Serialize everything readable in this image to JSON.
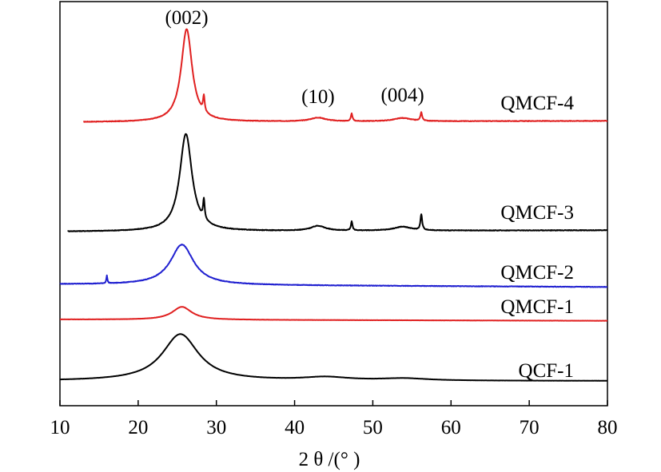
{
  "chart_data": {
    "type": "line",
    "xlabel": "2 θ /(°  )",
    "xlim": [
      10,
      80
    ],
    "xticks": [
      10,
      20,
      30,
      40,
      50,
      60,
      70,
      80
    ],
    "grid": false,
    "legend": "none (series labelled inline on the right)",
    "annotations": [
      {
        "text": "(002)",
        "x": 26.2
      },
      {
        "text": "(10)",
        "x": 43.0
      },
      {
        "text": "(004)",
        "x": 53.8
      }
    ],
    "series": [
      {
        "name": "QMCF-4",
        "color": "#e02020",
        "x_range": [
          13,
          80
        ],
        "baseline": 0.05,
        "slope": 0.0002,
        "noise": 0.006,
        "peaks": [
          {
            "center": 26.2,
            "height": 1.0,
            "width": 0.85
          },
          {
            "center": 28.4,
            "height": 0.17,
            "width": 0.12
          },
          {
            "center": 43.0,
            "height": 0.04,
            "width": 1.2
          },
          {
            "center": 47.3,
            "height": 0.08,
            "width": 0.12
          },
          {
            "center": 53.8,
            "height": 0.035,
            "width": 1.3
          },
          {
            "center": 56.2,
            "height": 0.09,
            "width": 0.13
          }
        ]
      },
      {
        "name": "QMCF-3",
        "color": "#000000",
        "x_range": [
          11,
          80
        ],
        "baseline": 0.04,
        "slope": 0.0002,
        "noise": 0.006,
        "peaks": [
          {
            "center": 26.1,
            "height": 1.0,
            "width": 0.95
          },
          {
            "center": 28.4,
            "height": 0.2,
            "width": 0.12
          },
          {
            "center": 43.0,
            "height": 0.05,
            "width": 1.1
          },
          {
            "center": 47.3,
            "height": 0.09,
            "width": 0.12
          },
          {
            "center": 53.8,
            "height": 0.04,
            "width": 1.3
          },
          {
            "center": 56.2,
            "height": 0.16,
            "width": 0.13
          }
        ]
      },
      {
        "name": "QMCF-2",
        "color": "#2020d0",
        "x_range": [
          10,
          80
        ],
        "baseline": 0.05,
        "slope": -0.0006,
        "noise": 0.008,
        "peaks": [
          {
            "center": 25.6,
            "height": 0.63,
            "width": 1.8
          },
          {
            "center": 16.0,
            "height": 0.12,
            "width": 0.08
          }
        ]
      },
      {
        "name": "QMCF-1",
        "color": "#e02020",
        "x_range": [
          10,
          80
        ],
        "baseline": 0.05,
        "slope": -0.0004,
        "noise": 0.004,
        "peaks": [
          {
            "center": 25.6,
            "height": 0.27,
            "width": 1.5
          }
        ]
      },
      {
        "name": "QCF-1",
        "color": "#000000",
        "x_range": [
          10,
          80
        ],
        "baseline": 0.05,
        "slope": 0.0,
        "noise": 0.002,
        "peaks": [
          {
            "center": 25.4,
            "height": 0.65,
            "width": 2.8
          },
          {
            "center": 44.0,
            "height": 0.045,
            "width": 3.5
          },
          {
            "center": 54.0,
            "height": 0.03,
            "width": 3.5
          }
        ]
      }
    ]
  }
}
